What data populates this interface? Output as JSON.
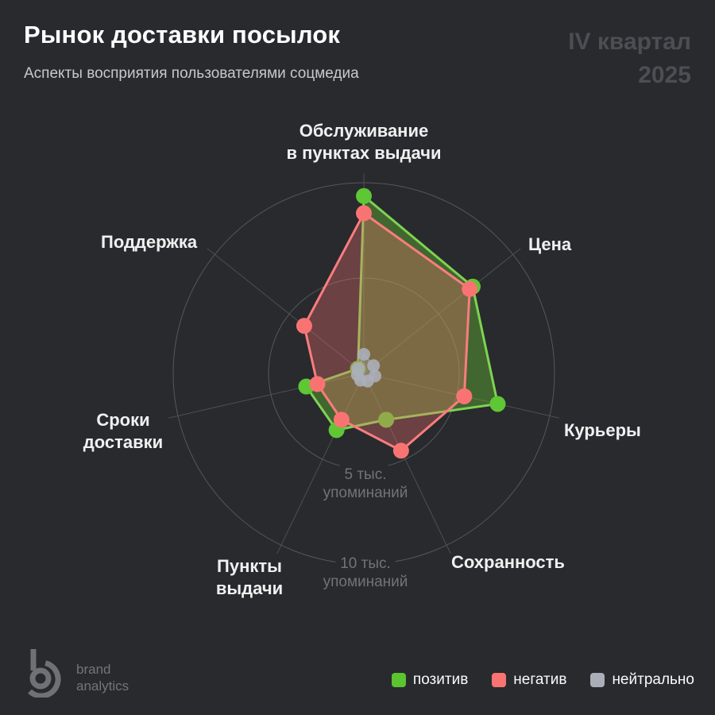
{
  "header": {
    "title": "Рынок доставки посылок",
    "subtitle": "Аспекты восприятия пользователями соцмедиа",
    "period_line1": "IV квартал",
    "period_line2": "2025"
  },
  "chart_data": {
    "type": "radar",
    "unit": "тыс. упоминаний",
    "max_value_thousands": 10,
    "grid": "circular",
    "categories": [
      "Обслуживание в пунктах выдачи",
      "Цена",
      "Курьеры",
      "Сохранность",
      "Пункты выдачи",
      "Сроки доставки",
      "Поддержка"
    ],
    "axis_labels": [
      {
        "line1": "Обслуживание",
        "line2": "в пунктах выдачи"
      },
      {
        "line1": "Цена",
        "line2": ""
      },
      {
        "line1": "Курьеры",
        "line2": ""
      },
      {
        "line1": "Сохранность",
        "line2": ""
      },
      {
        "line1": "Пункты",
        "line2": "выдачи"
      },
      {
        "line1": "Сроки",
        "line2": "доставки"
      },
      {
        "line1": "Поддержка",
        "line2": ""
      }
    ],
    "rings": [
      {
        "value_thousands": 5,
        "line1": "5 тыс.",
        "line2": "упоминаний"
      },
      {
        "value_thousands": 10,
        "line1": "10 тыс.",
        "line2": "упоминаний"
      }
    ],
    "series": [
      {
        "name": "позитив",
        "values_thousands": [
          9.3,
          7.3,
          7.2,
          2.7,
          3.3,
          3.1,
          0.4
        ],
        "line_color": "#7ED351",
        "fill_color": "rgba(110,200,55,0.38)",
        "dot_color": "#5FC636",
        "dot_radius": 10,
        "line_width": 3
      },
      {
        "name": "негатив",
        "values_thousands": [
          8.4,
          7.1,
          5.4,
          4.5,
          2.7,
          2.5,
          4.0
        ],
        "line_color": "#FA7D7D",
        "fill_color": "rgba(250,115,115,0.32)",
        "dot_color": "#FA7373",
        "dot_radius": 10,
        "line_width": 3
      },
      {
        "name": "нейтрально",
        "values_thousands": [
          1.0,
          0.65,
          0.6,
          0.45,
          0.4,
          0.35,
          0.4
        ],
        "line_color": "rgba(171,175,184,0.55)",
        "fill_color": "rgba(171,175,184,0.30)",
        "dot_color": "#ABAFB8",
        "dot_radius": 8,
        "line_width": 2
      }
    ],
    "grid_color": "#55575B",
    "axis_line_color": "#4D4F53"
  },
  "legend": {
    "items": [
      {
        "label": "позитив",
        "color": "#5BC431"
      },
      {
        "label": "негатив",
        "color": "#FA7373"
      },
      {
        "label": "нейтрально",
        "color": "#A9AEB8"
      }
    ]
  },
  "logo": {
    "line1": "brand",
    "line2": "analytics",
    "color": "#6E7277"
  }
}
